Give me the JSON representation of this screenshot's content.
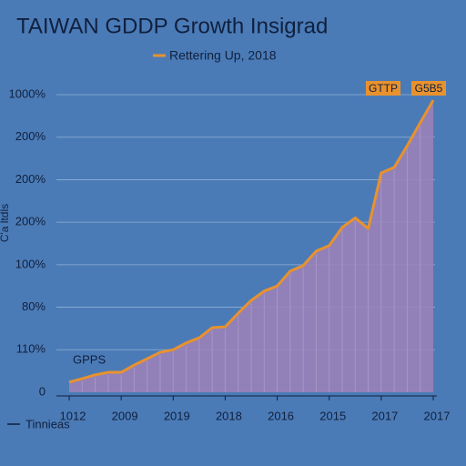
{
  "chart_data": {
    "type": "area",
    "title": "TAIWAN GDDP Growth Insigrad",
    "y_label": "C'a ltdls",
    "footer_note": "Tinnieas",
    "annotations": [
      "GPPS",
      "GTTP",
      "G5B5"
    ],
    "categories": [
      "1012",
      null,
      null,
      null,
      "2009",
      null,
      null,
      null,
      "2019",
      null,
      null,
      null,
      "2018",
      null,
      null,
      null,
      "2016",
      null,
      null,
      null,
      "2015",
      null,
      null,
      null,
      "2017",
      null,
      null,
      null,
      "2017"
    ],
    "series": [
      {
        "name": "Rettering Up, 2018",
        "color": "#e8922e",
        "fill": "#9a82b8",
        "values": [
          0.24,
          0.32,
          0.41,
          0.47,
          0.47,
          0.64,
          0.79,
          0.94,
          1.0,
          1.16,
          1.28,
          1.52,
          1.54,
          1.86,
          2.16,
          2.38,
          2.5,
          2.85,
          2.98,
          3.32,
          3.45,
          3.88,
          4.1,
          3.85,
          5.16,
          5.29,
          5.8,
          6.34,
          6.87
        ]
      }
    ],
    "ylim": [
      0,
      7
    ],
    "yticks": [
      0,
      {
        "value": 1,
        "label": "110%"
      },
      {
        "value": 2,
        "label": "80%"
      },
      {
        "value": 3,
        "label": "100%"
      },
      {
        "value": 4,
        "label": "200%"
      },
      {
        "value": 5,
        "label": "200%"
      },
      {
        "value": 6,
        "label": "200%"
      },
      {
        "value": 7,
        "label": "1000%"
      }
    ],
    "grid": true
  }
}
